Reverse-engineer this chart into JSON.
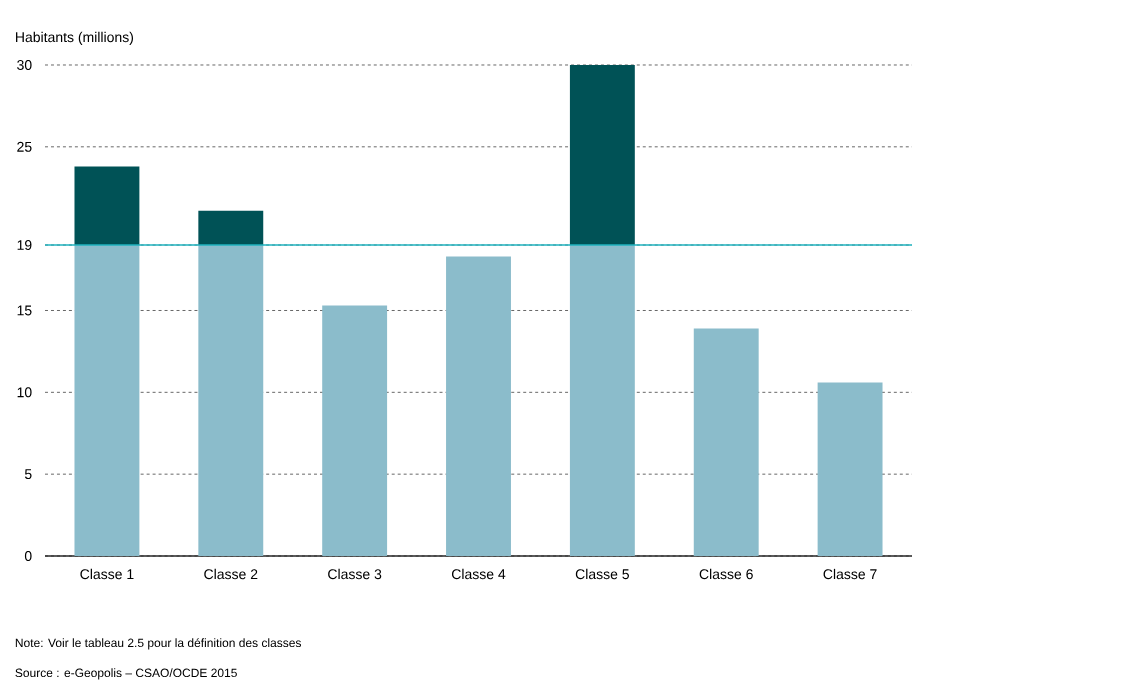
{
  "chart_data": {
    "type": "bar",
    "stacked": true,
    "ylabel": "Habitants (millions)",
    "categories": [
      "Classe 1",
      "Classe 2",
      "Classe 3",
      "Classe 4",
      "Classe 5",
      "Classe 6",
      "Classe 7"
    ],
    "series": [
      {
        "color": "#8bbccb",
        "values": [
          19,
          19,
          15.3,
          18.3,
          19,
          13.9,
          10.6
        ]
      },
      {
        "color": "#005256",
        "values": [
          4.8,
          2.1,
          null,
          null,
          11,
          null,
          null
        ]
      }
    ],
    "ylim": [
      0,
      30
    ],
    "yticks": [
      0,
      5,
      10,
      15,
      19,
      25,
      30
    ],
    "grid": "y",
    "ref_lines": [
      {
        "axis": "y",
        "value": 19,
        "color": "#1fb3bf"
      }
    ],
    "annotations": [
      "Note: Voir le tableau 2.5 pour la définition des classes",
      "Source : e-Geopolis – CSAO/OCDE 2015"
    ]
  }
}
